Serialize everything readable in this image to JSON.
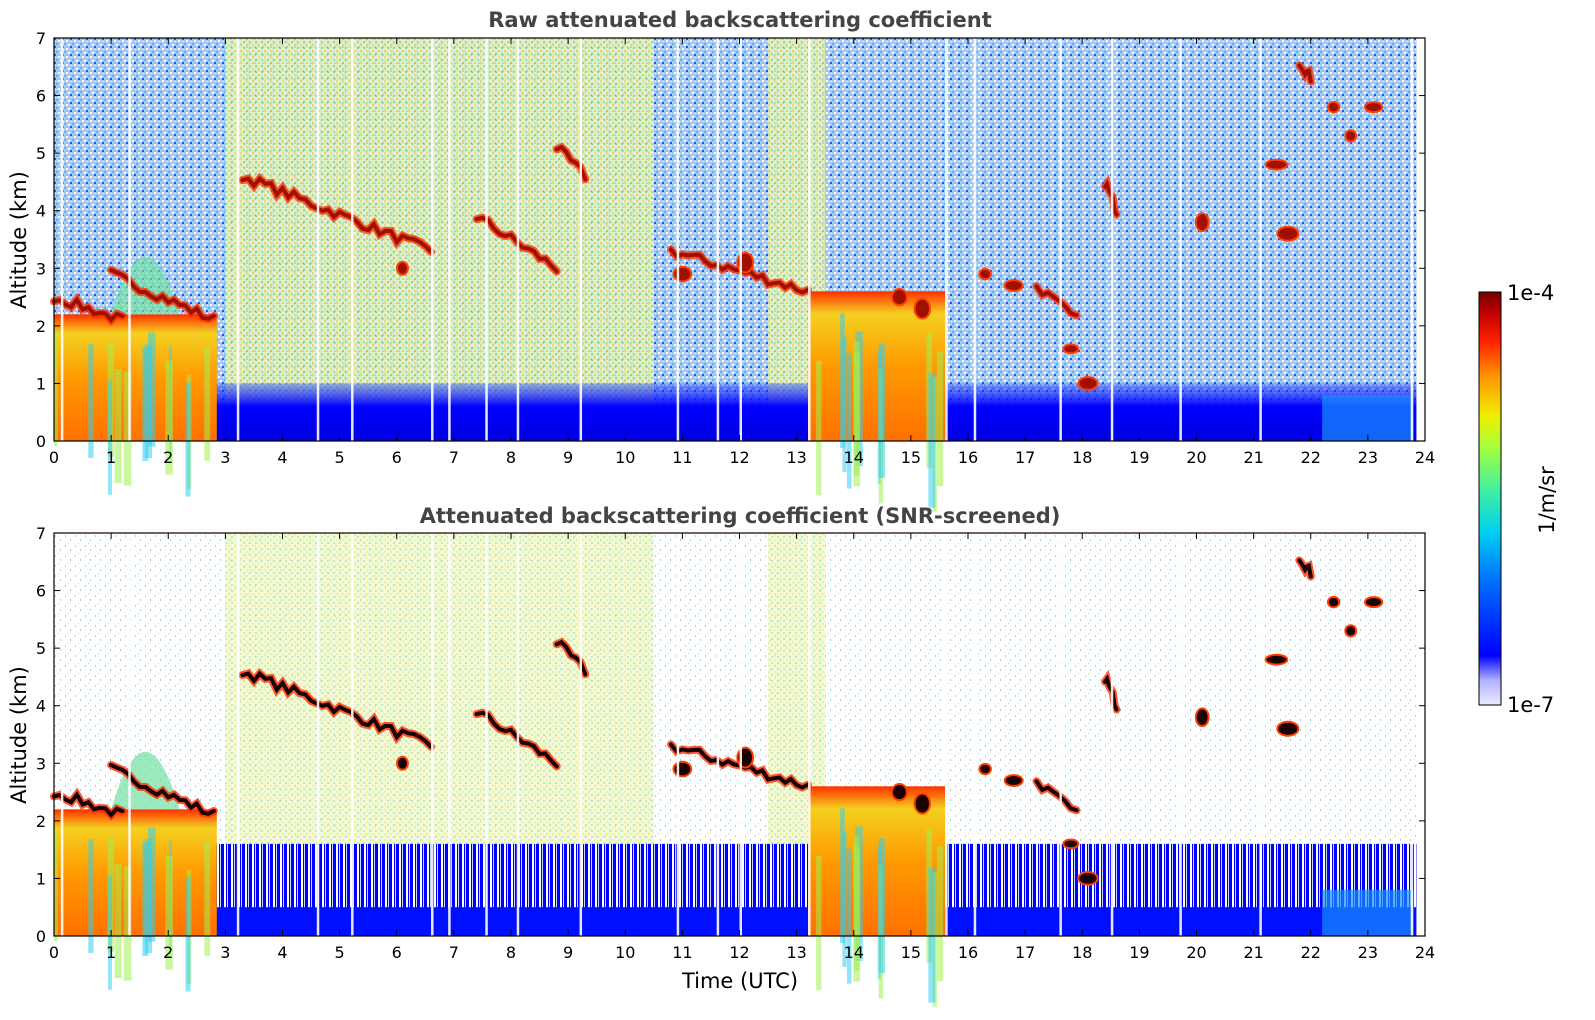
{
  "chart_data": [
    {
      "type": "heatmap",
      "title": "Raw attenuated backscattering coefficient",
      "xlabel": "",
      "ylabel": "Altitude (km)",
      "xlim": [
        0,
        24
      ],
      "ylim": [
        0,
        7
      ],
      "x_ticks": [
        0,
        1,
        2,
        3,
        4,
        5,
        6,
        7,
        8,
        9,
        10,
        11,
        12,
        13,
        14,
        15,
        16,
        17,
        18,
        19,
        20,
        21,
        22,
        23,
        24
      ],
      "y_ticks": [
        0,
        1,
        2,
        3,
        4,
        5,
        6,
        7
      ],
      "grid": false,
      "features": {
        "cloud_layers": [
          {
            "t_start": 0.0,
            "t_end": 1.2,
            "alt_top": 2.5,
            "alt_bottom": 2.1
          },
          {
            "t_start": 1.0,
            "t_end": 2.8,
            "alt_top": 2.9,
            "alt_bottom": 2.1
          },
          {
            "t_start": 3.3,
            "t_end": 6.6,
            "alt_top": 4.6,
            "alt_bottom": 3.3
          },
          {
            "t_start": 7.4,
            "t_end": 8.8,
            "alt_top": 3.9,
            "alt_bottom": 3.0
          },
          {
            "t_start": 8.8,
            "t_end": 9.3,
            "alt_top": 5.1,
            "alt_bottom": 4.6
          },
          {
            "t_start": 10.8,
            "t_end": 13.2,
            "alt_top": 3.3,
            "alt_bottom": 2.6
          },
          {
            "t_start": 17.2,
            "t_end": 17.9,
            "alt_top": 2.7,
            "alt_bottom": 2.1
          },
          {
            "t_start": 18.4,
            "t_end": 18.6,
            "alt_top": 4.5,
            "alt_bottom": 4.0
          },
          {
            "t_start": 21.8,
            "t_end": 22.0,
            "alt_top": 6.6,
            "alt_bottom": 6.3
          }
        ],
        "precipitation_columns": [
          {
            "t_start": 0.0,
            "t_end": 2.85,
            "alt_top": 2.2
          },
          {
            "t_start": 13.2,
            "t_end": 15.6,
            "alt_top": 2.6
          }
        ]
      }
    },
    {
      "type": "heatmap",
      "title": "Attenuated backscattering coefficient (SNR-screened)",
      "xlabel": "Time (UTC)",
      "ylabel": "Altitude (km)",
      "xlim": [
        0,
        24
      ],
      "ylim": [
        0,
        7
      ],
      "x_ticks": [
        0,
        1,
        2,
        3,
        4,
        5,
        6,
        7,
        8,
        9,
        10,
        11,
        12,
        13,
        14,
        15,
        16,
        17,
        18,
        19,
        20,
        21,
        22,
        23,
        24
      ],
      "y_ticks": [
        0,
        1,
        2,
        3,
        4,
        5,
        6,
        7
      ],
      "grid": false
    }
  ],
  "colorbar": {
    "label": "1/m/sr",
    "max_label": "1e-4",
    "min_label": "1e-7",
    "scale": "log",
    "range": [
      1e-07,
      0.0001
    ],
    "colormap": [
      "#ececff",
      "#0000ff",
      "#0070ff",
      "#00d0f0",
      "#40f0a0",
      "#a0ff40",
      "#f0f000",
      "#ff9000",
      "#ff2000",
      "#c00000",
      "#700000"
    ]
  }
}
